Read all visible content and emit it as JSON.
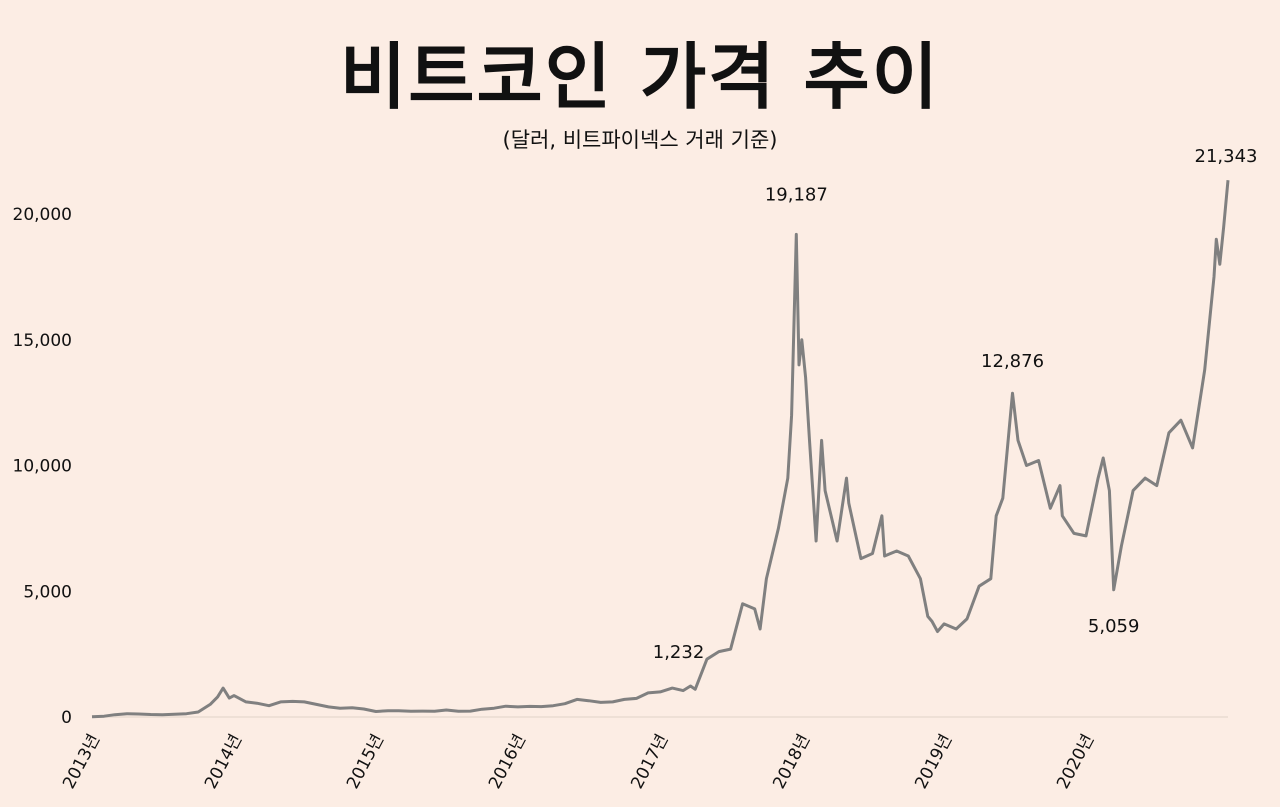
{
  "chart_data": {
    "type": "line",
    "title": "비트코인 가격 추이",
    "subtitle": "(달러, 비트파이넥스 거래 기준)",
    "xlabel": "",
    "ylabel": "",
    "ylim": [
      0,
      21343
    ],
    "yticks": [
      0,
      5000,
      10000,
      15000,
      20000
    ],
    "ytick_labels": [
      "0",
      "5,000",
      "10,000",
      "15,000",
      "20,000"
    ],
    "xticks": [
      "2013-01-01",
      "2014-01-01",
      "2015-01-01",
      "2016-01-01",
      "2017-01-01",
      "2018-01-01",
      "2019-01-01",
      "2020-01-01"
    ],
    "xtick_labels": [
      "2013년",
      "2014년",
      "2015년",
      "2016년",
      "2017년",
      "2018년",
      "2019년",
      "2020년"
    ],
    "grid": false,
    "line_color": "#808080",
    "background": "#fcede4",
    "series": [
      {
        "x": [
          "2013-01-01",
          "2013-02-01",
          "2013-03-01",
          "2013-04-01",
          "2013-05-01",
          "2013-06-01",
          "2013-07-01",
          "2013-08-01",
          "2013-09-01",
          "2013-10-01",
          "2013-11-01",
          "2013-11-20",
          "2013-12-04",
          "2013-12-20",
          "2014-01-01",
          "2014-02-01",
          "2014-03-01",
          "2014-04-01",
          "2014-05-01",
          "2014-06-01",
          "2014-07-01",
          "2014-08-01",
          "2014-09-01",
          "2014-10-01",
          "2014-11-01",
          "2014-12-01",
          "2015-01-01",
          "2015-02-01",
          "2015-03-01",
          "2015-04-01",
          "2015-05-01",
          "2015-06-01",
          "2015-07-01",
          "2015-08-01",
          "2015-09-01",
          "2015-10-01",
          "2015-11-01",
          "2015-12-01",
          "2016-01-01",
          "2016-02-01",
          "2016-03-01",
          "2016-04-01",
          "2016-05-01",
          "2016-06-01",
          "2016-07-01",
          "2016-08-01",
          "2016-09-01",
          "2016-10-01",
          "2016-11-01",
          "2016-12-01",
          "2017-01-01",
          "2017-02-01",
          "2017-03-01",
          "2017-03-20",
          "2017-04-01",
          "2017-05-01",
          "2017-06-01",
          "2017-07-01",
          "2017-08-01",
          "2017-09-01",
          "2017-09-15",
          "2017-10-01",
          "2017-11-01",
          "2017-11-25",
          "2017-12-05",
          "2017-12-17",
          "2017-12-24",
          "2017-12-31",
          "2018-01-10",
          "2018-01-20",
          "2018-02-06",
          "2018-02-20",
          "2018-03-01",
          "2018-04-01",
          "2018-04-25",
          "2018-05-01",
          "2018-06-01",
          "2018-07-01",
          "2018-07-25",
          "2018-08-01",
          "2018-09-01",
          "2018-10-01",
          "2018-11-01",
          "2018-11-20",
          "2018-12-01",
          "2018-12-15",
          "2019-01-01",
          "2019-02-01",
          "2019-03-01",
          "2019-04-01",
          "2019-05-01",
          "2019-05-15",
          "2019-06-01",
          "2019-06-26",
          "2019-07-10",
          "2019-08-01",
          "2019-09-01",
          "2019-10-01",
          "2019-10-26",
          "2019-11-01",
          "2019-12-01",
          "2020-01-01",
          "2020-02-01",
          "2020-02-14",
          "2020-03-01",
          "2020-03-12",
          "2020-04-01",
          "2020-05-01",
          "2020-06-01",
          "2020-07-01",
          "2020-08-01",
          "2020-09-01",
          "2020-10-01",
          "2020-11-01",
          "2020-11-25",
          "2020-12-01",
          "2020-12-10",
          "2020-12-20",
          "2020-12-31"
        ],
        "y": [
          13,
          30,
          90,
          130,
          120,
          100,
          90,
          110,
          130,
          200,
          500,
          800,
          1150,
          750,
          850,
          600,
          550,
          450,
          600,
          620,
          600,
          500,
          400,
          350,
          370,
          320,
          220,
          250,
          250,
          230,
          235,
          230,
          280,
          230,
          235,
          310,
          350,
          430,
          400,
          420,
          415,
          450,
          530,
          700,
          650,
          580,
          600,
          700,
          740,
          960,
          1000,
          1150,
          1050,
          1232,
          1100,
          2300,
          2600,
          2700,
          4500,
          4300,
          3500,
          5500,
          7500,
          9500,
          12000,
          19187,
          14000,
          15000,
          13500,
          11000,
          7000,
          11000,
          9000,
          7000,
          9500,
          8500,
          6300,
          6500,
          8000,
          6400,
          6600,
          6400,
          5500,
          4000,
          3800,
          3400,
          3700,
          3500,
          3900,
          5200,
          5500,
          8000,
          8700,
          12876,
          11000,
          10000,
          10200,
          8300,
          9200,
          8000,
          7300,
          7200,
          9500,
          10300,
          9000,
          5059,
          6800,
          9000,
          9500,
          9200,
          11300,
          11800,
          10700,
          13800,
          17500,
          19000,
          18000,
          19500,
          21343
        ]
      }
    ],
    "annotations": [
      {
        "x": "2017-03-20",
        "y": 1232,
        "label": "1,232"
      },
      {
        "x": "2017-12-17",
        "y": 19187,
        "label": "19,187"
      },
      {
        "x": "2019-06-26",
        "y": 12876,
        "label": "12,876"
      },
      {
        "x": "2020-03-12",
        "y": 5059,
        "label": "5,059"
      },
      {
        "x": "2020-12-31",
        "y": 21343,
        "label": "21,343"
      }
    ]
  }
}
